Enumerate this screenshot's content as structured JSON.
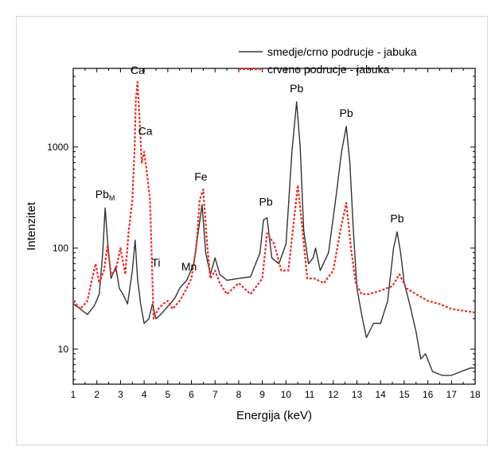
{
  "chart_data": {
    "type": "line",
    "xlabel": "Energija (keV)",
    "ylabel": "Intenzitet",
    "xlim": [
      1,
      18
    ],
    "ylim": [
      4.5,
      6000
    ],
    "yscale": "log",
    "grid": false,
    "legend_position": "top-right",
    "x_ticks": [
      "1",
      "2",
      "3",
      "4",
      "5",
      "6",
      "7",
      "8",
      "9",
      "10",
      "11",
      "12",
      "13",
      "14",
      "15",
      "16",
      "17",
      "18"
    ],
    "y_ticks": [
      {
        "value": 10,
        "label": "10"
      },
      {
        "value": 100,
        "label": "100"
      },
      {
        "value": 1000,
        "label": "1000"
      }
    ],
    "series": [
      {
        "name": "smedje/crno podrucje - jabuka",
        "color": "#333333",
        "style": "solid",
        "x": [
          1.0,
          1.3,
          1.6,
          1.9,
          2.1,
          2.25,
          2.35,
          2.45,
          2.6,
          2.8,
          2.95,
          3.1,
          3.3,
          3.5,
          3.62,
          3.72,
          3.85,
          4.0,
          4.2,
          4.35,
          4.5,
          4.7,
          4.9,
          5.1,
          5.3,
          5.5,
          5.8,
          6.1,
          6.3,
          6.45,
          6.6,
          6.8,
          7.0,
          7.2,
          7.5,
          8.0,
          8.5,
          8.9,
          9.05,
          9.2,
          9.4,
          9.7,
          10.0,
          10.25,
          10.45,
          10.6,
          10.75,
          10.95,
          11.15,
          11.25,
          11.45,
          11.8,
          12.1,
          12.35,
          12.55,
          12.7,
          12.85,
          13.0,
          13.2,
          13.4,
          13.7,
          14.0,
          14.3,
          14.55,
          14.7,
          14.85,
          15.0,
          15.2,
          15.5,
          15.7,
          15.9,
          16.2,
          16.6,
          17.0,
          17.4,
          17.8,
          18.0
        ],
        "y": [
          28,
          25,
          22,
          27,
          35,
          90,
          250,
          120,
          50,
          65,
          40,
          35,
          28,
          60,
          120,
          50,
          28,
          18,
          20,
          28,
          20,
          22,
          25,
          28,
          32,
          40,
          48,
          70,
          150,
          270,
          90,
          55,
          80,
          55,
          48,
          50,
          52,
          90,
          190,
          200,
          80,
          70,
          110,
          900,
          2800,
          1000,
          150,
          70,
          80,
          100,
          60,
          90,
          300,
          900,
          1600,
          700,
          150,
          40,
          22,
          13,
          18,
          18,
          30,
          100,
          145,
          90,
          45,
          30,
          15,
          8,
          9,
          6,
          5.5,
          5.5,
          6,
          6.5,
          6.5
        ]
      },
      {
        "name": "crveno podrucje - jabuka",
        "color": "#e8302a",
        "style": "dotted",
        "x": [
          1.0,
          1.3,
          1.6,
          1.8,
          1.95,
          2.1,
          2.3,
          2.45,
          2.6,
          2.8,
          3.0,
          3.2,
          3.35,
          3.5,
          3.6,
          3.65,
          3.72,
          3.8,
          3.9,
          4.0,
          4.1,
          4.25,
          4.4,
          4.6,
          4.8,
          5.0,
          5.2,
          5.5,
          5.8,
          6.0,
          6.2,
          6.35,
          6.5,
          6.65,
          6.8,
          7.0,
          7.2,
          7.5,
          8.0,
          8.5,
          9.0,
          9.2,
          9.5,
          9.8,
          10.1,
          10.35,
          10.5,
          10.7,
          10.9,
          11.2,
          11.6,
          12.0,
          12.3,
          12.55,
          12.75,
          12.95,
          13.2,
          13.5,
          14.0,
          14.5,
          14.8,
          15.1,
          15.5,
          16.0,
          16.5,
          17.0,
          17.5,
          18.0
        ],
        "y": [
          30,
          25,
          30,
          50,
          70,
          45,
          60,
          105,
          55,
          60,
          100,
          55,
          150,
          300,
          1000,
          3000,
          4400,
          2000,
          700,
          900,
          600,
          300,
          20,
          25,
          28,
          30,
          25,
          30,
          40,
          50,
          100,
          300,
          380,
          120,
          50,
          60,
          45,
          35,
          45,
          35,
          50,
          140,
          110,
          60,
          60,
          200,
          420,
          150,
          50,
          50,
          45,
          60,
          150,
          280,
          100,
          45,
          35,
          35,
          38,
          42,
          55,
          40,
          35,
          30,
          28,
          25,
          24,
          23
        ]
      }
    ],
    "annotations": [
      {
        "text": "Ca",
        "x": 3.72,
        "y": 4400
      },
      {
        "text": "Ca",
        "x": 4.05,
        "y": 1100
      },
      {
        "text": "Pb",
        "sub": "M",
        "x": 2.35,
        "y": 260
      },
      {
        "text": "Ti",
        "x": 4.5,
        "y": 55
      },
      {
        "text": "Mn",
        "x": 5.9,
        "y": 50
      },
      {
        "text": "Fe",
        "x": 6.4,
        "y": 390
      },
      {
        "text": "Pb",
        "x": 9.15,
        "y": 220
      },
      {
        "text": "Pb",
        "x": 10.45,
        "y": 2900
      },
      {
        "text": "Pb",
        "x": 12.55,
        "y": 1650
      },
      {
        "text": "Pb",
        "x": 14.7,
        "y": 150
      }
    ]
  }
}
